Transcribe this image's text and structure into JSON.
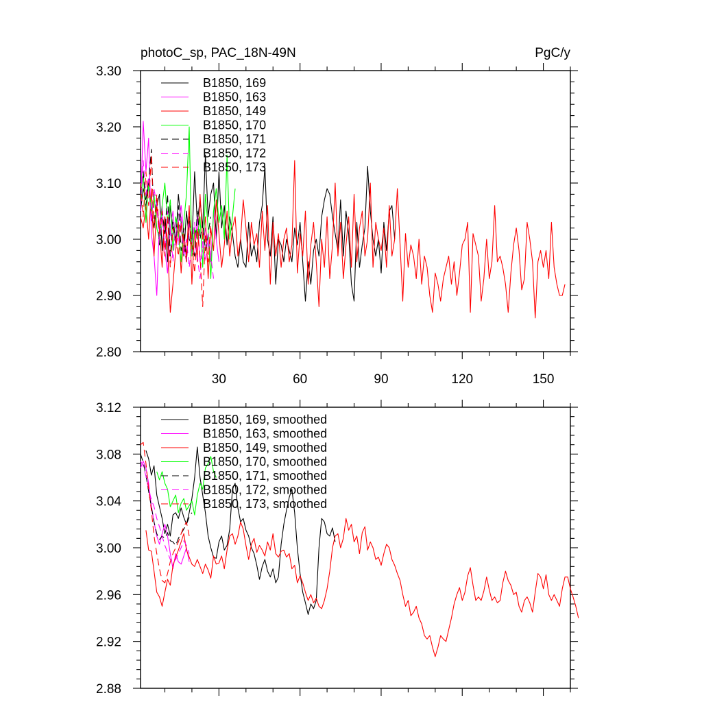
{
  "chart_data": [
    {
      "type": "line",
      "title": "photoC_sp, PAC_18N-49N",
      "units": "PgC/y",
      "ylim": [
        2.8,
        3.3
      ],
      "yticks": [
        2.8,
        2.9,
        3.0,
        3.1,
        3.2,
        3.3
      ],
      "ytick_labels": [
        "2.80",
        "2.90",
        "3.00",
        "3.10",
        "3.20",
        "3.30"
      ],
      "xlim": [
        1,
        160
      ],
      "xticks": [
        30,
        60,
        90,
        120,
        150
      ],
      "xtick_labels": [
        "30",
        "60",
        "90",
        "120",
        "150"
      ],
      "grid": false,
      "legend_position": "top-left",
      "series": [
        {
          "name": "B1850, 169",
          "color": "#000000",
          "dash": "solid",
          "x_start": 1,
          "values": [
            3.05,
            3.09,
            3.07,
            3.1,
            3.04,
            3.02,
            3.06,
            3.08,
            2.98,
            3.04,
            2.96,
            3.06,
            3.02,
            2.99,
            3.08,
            3.03,
            2.97,
            3.05,
            3.0,
            2.99,
            3.12,
            3.03,
            3.07,
            3.02,
            3.15,
            3.04,
            3.08,
            3.1,
            3.0,
            3.12,
            3.02,
            3.06,
            2.99,
            3.04,
            3.01,
            2.97,
            2.95,
            3.0,
            2.96,
            2.95,
            3.03,
            2.97,
            2.99,
            2.96,
            3.03,
            3.06,
            3.13,
            3.0,
            2.97,
            3.04,
            2.92,
            3.0,
            2.99,
            2.96,
            3.0,
            2.98,
            2.96,
            3.02,
            2.99,
            3.03,
            2.96,
            2.89,
            2.96,
            2.92,
            2.98,
            3.0,
            2.97,
            3.04,
            3.07,
            3.09,
            3.08,
            3.04,
            3.01,
            2.98,
            3.07,
            2.97,
            3.05,
            3.01,
            2.92,
            2.89,
            3.03,
            2.95,
            2.99,
            3.02,
            3.13,
            3.05,
            3.0,
            2.97,
            3.0,
            2.94,
            3.03,
            2.98,
            3.05,
            3.06,
            3.0
          ]
        },
        {
          "name": "B1850, 163",
          "color": "#ff00ff",
          "dash": "solid",
          "x_start": 1,
          "values": [
            3.05,
            3.21,
            3.12,
            3.18,
            3.01,
            2.97,
            2.9,
            3.03,
            3.06,
            2.98,
            2.94,
            3.02,
            3.05,
            2.99,
            3.03,
            3.06,
            3.01,
            2.96,
            3.03,
            2.99,
            2.97,
            3.04,
            2.96,
            2.98,
            3.02,
            2.99,
            2.96,
            3.05,
            3.0,
            2.96
          ]
        },
        {
          "name": "B1850, 149",
          "color": "#ff0000",
          "dash": "solid",
          "x_start": 1,
          "values": [
            3.04,
            3.02,
            3.06,
            3.0,
            3.09,
            2.97,
            3.06,
            3.02,
            2.95,
            3.04,
            3.0,
            2.87,
            2.92,
            2.98,
            3.03,
            2.94,
            3.01,
            2.97,
            3.06,
            2.92,
            3.02,
            2.96,
            3.08,
            3.0,
            3.04,
            2.93,
            3.02,
            2.98,
            3.07,
            3.01,
            2.95,
            2.99,
            3.05,
            2.97,
            3.02,
            3.04,
            2.97,
            3.0,
            3.07,
            3.02,
            2.96,
            3.03,
            2.99,
            3.01,
            2.95,
            3.05,
            2.98,
            3.06,
            2.92,
            3.03,
            2.97,
            3.01,
            2.95,
            3.0,
            3.02,
            2.96,
            2.99,
            3.14,
            2.94,
            3.01,
            2.97,
            3.05,
            2.92,
            2.99,
            3.03,
            2.96,
            2.88,
            3.0,
            2.95,
            3.04,
            2.93,
            2.99,
            3.1,
            2.97,
            3.03,
            2.93,
            2.99,
            3.04,
            2.95,
            3.08,
            2.96,
            3.02,
            3.05,
            2.97,
            3.0,
            3.1,
            2.95,
            3.03,
            3.0,
            2.98,
            3.02,
            2.95,
            3.06,
            2.97,
            3.0,
            3.09,
            2.99,
            2.89,
            3.01,
            2.95,
            2.99,
            2.97,
            2.93,
            3.0,
            2.92,
            2.97,
            2.95,
            2.9,
            2.87,
            2.94,
            2.92,
            2.89,
            2.93,
            2.95,
            2.97,
            2.92,
            2.96,
            2.9,
            2.94,
            2.99,
            3.0,
            3.03,
            2.87,
            3.01,
            2.99,
            2.97,
            2.89,
            2.93,
            3.0,
            2.93,
            2.96,
            3.06,
            2.96,
            2.97,
            2.95,
            2.92,
            2.87,
            2.94,
            2.99,
            3.02,
            2.98,
            2.91,
            2.93,
            3.03,
            3.0,
            2.96,
            2.86,
            2.96,
            2.98,
            2.95,
            2.98,
            2.93,
            3.03,
            2.95,
            2.92,
            2.9,
            2.9,
            2.92
          ]
        },
        {
          "name": "B1850, 170",
          "color": "#00ff00",
          "dash": "solid",
          "x_start": 1,
          "values": [
            3.06,
            3.12,
            3.03,
            3.1,
            3.05,
            3.08,
            3.02,
            3.0,
            3.06,
            3.1,
            3.03,
            3.07,
            2.98,
            3.04,
            3.01,
            2.96,
            3.03,
            3.08,
            3.2,
            2.97,
            3.02,
            3.0,
            3.04,
            2.95,
            3.08,
            3.02,
            2.93,
            3.05,
            3.09,
            3.03,
            3.06,
            3.0,
            3.15,
            3.0,
            3.04,
            3.09
          ]
        },
        {
          "name": "B1850, 171",
          "color": "#000000",
          "dash": "10,6",
          "x_start": 1,
          "values": [
            3.08,
            3.12,
            3.06,
            3.1,
            3.16,
            3.03,
            3.07,
            2.99,
            3.05,
            3.01,
            3.08,
            2.97,
            3.03,
            3.0,
            3.06,
            2.98,
            3.02,
            2.96,
            3.04,
            2.99,
            2.97,
            3.05,
            3.0,
            3.03,
            2.98,
            3.01,
            3.04
          ]
        },
        {
          "name": "B1850, 172",
          "color": "#ff00ff",
          "dash": "10,6",
          "x_start": 1,
          "values": [
            3.06,
            3.14,
            3.08,
            3.11,
            3.03,
            3.09,
            3.06,
            3.0,
            3.04,
            2.98,
            3.05,
            3.02,
            2.96,
            3.03,
            2.99,
            3.04,
            2.97,
            3.0,
            2.95,
            2.99,
            3.03,
            2.97,
            2.93,
            3.0,
            2.96,
            3.01,
            2.97,
            2.93
          ]
        },
        {
          "name": "B1850, 173",
          "color": "#ff0000",
          "dash": "10,6",
          "x_start": 1,
          "values": [
            3.1,
            3.04,
            3.12,
            3.06,
            3.15,
            3.02,
            3.08,
            3.01,
            3.05,
            2.97,
            3.04,
            2.95,
            3.02,
            3.0,
            2.97,
            3.03,
            2.99,
            2.96,
            3.05,
            2.99,
            2.94,
            3.02,
            2.97,
            2.88,
            3.01,
            2.96,
            3.03
          ]
        }
      ]
    },
    {
      "type": "line",
      "ylim": [
        2.88,
        3.12
      ],
      "yticks": [
        2.88,
        2.92,
        2.96,
        3.0,
        3.04,
        3.08,
        3.12
      ],
      "ytick_labels": [
        "2.88",
        "2.92",
        "2.96",
        "3.00",
        "3.04",
        "3.08",
        "3.12"
      ],
      "xlim": [
        1,
        160
      ],
      "xticks": [
        30,
        60,
        90,
        120,
        150
      ],
      "grid": false,
      "legend_position": "top-left",
      "series": [
        {
          "name": "B1850, 169, smoothed",
          "color": "#000000",
          "dash": "solid",
          "x_start": 3,
          "values": [
            3.083,
            3.076,
            3.062,
            3.07,
            3.045,
            3.035,
            3.025,
            3.012,
            3.02,
            3.01,
            3.028,
            3.03,
            3.025,
            3.034,
            3.026,
            3.02,
            3.03,
            3.042,
            3.06,
            3.086,
            3.06,
            3.045,
            3.03,
            3.01,
            3.0,
            2.992,
            2.991,
            3.005,
            3.01,
            2.998,
            3.002,
            3.016,
            3.05,
            3.055,
            3.034,
            3.022,
            3.025,
            3.015,
            3.01,
            3.0,
            2.995,
            2.985,
            2.973,
            2.984,
            2.99,
            2.98,
            2.975,
            2.982,
            2.97,
            2.975,
            3.003,
            3.02,
            3.032,
            3.043,
            3.05,
            3.03,
            3.0,
            2.978,
            2.962,
            2.953,
            2.943,
            2.952,
            2.948,
            2.955,
            3.0,
            3.025,
            3.022,
            3.012,
            3.01,
            3.017,
            3.005
          ]
        },
        {
          "name": "B1850, 163, smoothed",
          "color": "#ff00ff",
          "dash": "solid",
          "x_start": 1,
          "values": [
            3.068,
            3.074,
            3.068,
            3.055,
            3.036,
            3.022,
            3.01,
            3.003,
            3.012,
            3.02,
            3.01,
            2.995,
            2.982,
            2.995,
            2.988,
            2.986,
            2.993,
            3.0,
            2.988
          ]
        },
        {
          "name": "B1850, 149, smoothed",
          "color": "#ff0000",
          "dash": "solid",
          "x_start": 3,
          "values": [
            3.015,
            2.998,
            2.997,
            2.98,
            2.962,
            2.958,
            2.95,
            2.962,
            2.973,
            2.968,
            2.985,
            2.992,
            2.998,
            3.005,
            3.012,
            2.998,
            2.992,
            2.986,
            2.984,
            2.99,
            2.984,
            2.978,
            2.986,
            2.981,
            2.974,
            2.993,
            2.986,
            2.987,
            2.993,
            2.982,
            2.998,
            3.01,
            3.012,
            3.003,
            3.01,
            3.022,
            3.016,
            3.002,
            2.99,
            3.003,
            3.008,
            2.996,
            3.002,
            2.998,
            2.993,
            3.005,
            2.998,
            3.012,
            2.995,
            2.992,
            2.997,
            2.998,
            2.992,
            2.995,
            2.982,
            2.985,
            2.97,
            2.976,
            2.97,
            2.962,
            2.955,
            2.96,
            2.953,
            2.957,
            2.95,
            2.948,
            2.955,
            2.965,
            2.98,
            3.0,
            3.01,
            3.012,
            3.0,
            3.008,
            3.025,
            3.015,
            3.02,
            3.005,
            3.01,
            2.995,
            3.013,
            3.018,
            2.998,
            3.005,
            3.0,
            2.99,
            2.992,
            2.985,
            2.995,
            3.003,
            3.0,
            2.99,
            2.985,
            2.978,
            2.972,
            2.96,
            2.95,
            2.955,
            2.942,
            2.945,
            2.95,
            2.94,
            2.935,
            2.925,
            2.922,
            2.925,
            2.915,
            2.907,
            2.915,
            2.925,
            2.922,
            2.92,
            2.93,
            2.94,
            2.952,
            2.96,
            2.966,
            2.955,
            2.962,
            2.976,
            2.983,
            2.968,
            2.955,
            2.958,
            2.955,
            2.963,
            2.975,
            2.964,
            2.955,
            2.958,
            2.953,
            2.955,
            2.97,
            2.98,
            2.972,
            2.968,
            2.96,
            2.962,
            2.95,
            2.945,
            2.955,
            2.958,
            2.953,
            2.945,
            2.962,
            2.978,
            2.975,
            2.965,
            2.977,
            2.96,
            2.955,
            2.96,
            2.955,
            2.95,
            2.965,
            2.975,
            2.975,
            2.965,
            2.958,
            2.95,
            2.94
          ]
        },
        {
          "name": "B1850, 170, smoothed",
          "color": "#00ff00",
          "dash": "solid",
          "x_start": 7,
          "values": [
            3.065,
            3.058,
            3.065,
            3.055,
            3.05,
            3.035,
            3.04,
            3.045,
            3.03,
            3.038,
            3.042,
            3.032,
            3.036,
            3.04,
            3.028,
            3.045,
            3.055,
            3.05,
            3.068,
            3.072,
            3.078,
            3.065,
            3.06
          ]
        },
        {
          "name": "B1850, 171, smoothed",
          "color": "#000000",
          "dash": "10,6",
          "x_start": 1,
          "values": [
            3.08,
            3.073,
            3.062,
            3.048,
            3.035,
            3.022,
            3.012,
            3.007,
            3.01,
            3.008,
            3.013,
            3.006,
            3.005,
            3.002,
            3.008,
            3.012,
            3.016,
            3.02,
            3.026,
            3.03
          ]
        },
        {
          "name": "B1850, 172, smoothed",
          "color": "#ff00ff",
          "dash": "10,6",
          "x_start": 1,
          "values": [
            3.074,
            3.07,
            3.061,
            3.05,
            3.041,
            3.035,
            3.025,
            3.018,
            3.01,
            3.002,
            2.996,
            2.99,
            2.987,
            2.99,
            2.995,
            3.0,
            3.006,
            3.002,
            2.995
          ]
        },
        {
          "name": "B1850, 173, smoothed",
          "color": "#ff0000",
          "dash": "10,6",
          "x_start": 1,
          "values": [
            3.088,
            3.09,
            3.072,
            3.05,
            3.032,
            3.01,
            2.995,
            2.982,
            2.972,
            2.97,
            2.978,
            2.988,
            2.995,
            3.0,
            3.005,
            3.012,
            3.018,
            3.022,
            3.01
          ]
        }
      ]
    }
  ]
}
